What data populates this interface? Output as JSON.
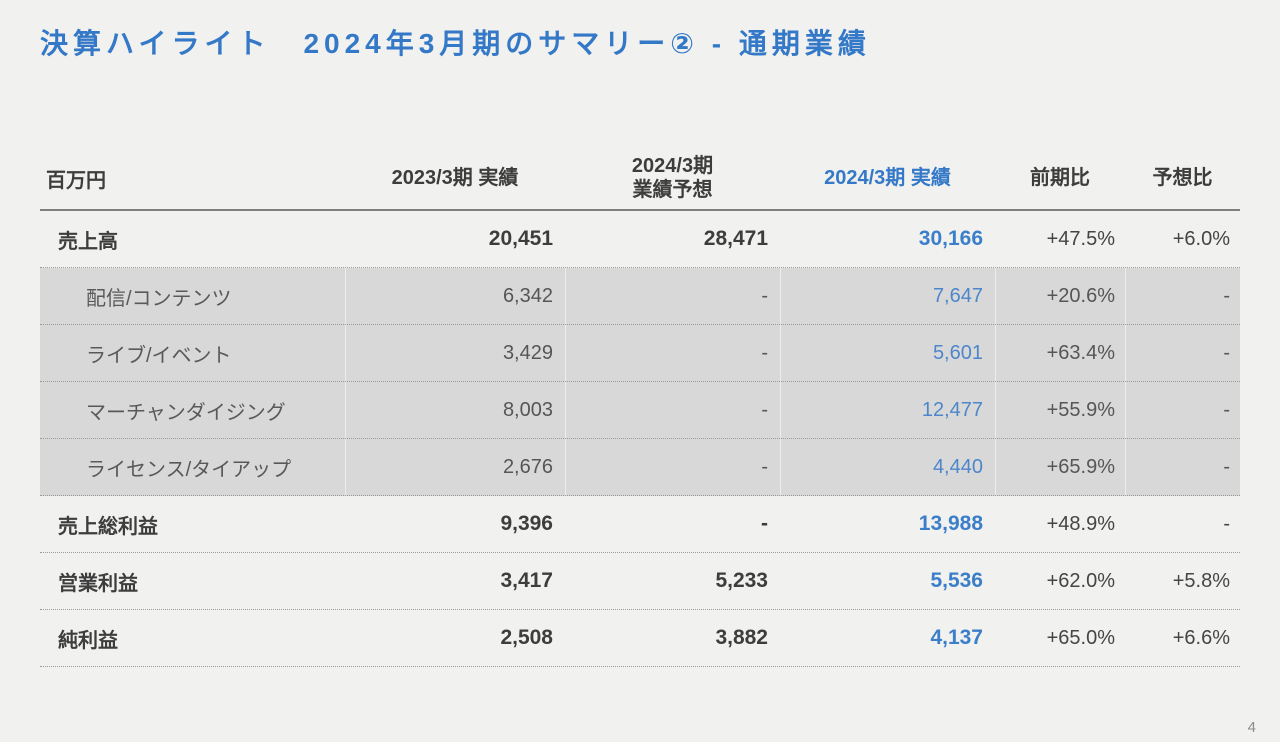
{
  "page": {
    "number": "4",
    "background": "#f1f1ef"
  },
  "title": {
    "text": "決算ハイライト　2024年3月期のサマリー② - 通期業績",
    "color": "#3478c8"
  },
  "colors": {
    "accent_blue": "#3478c8",
    "value_blue": "#3b7ec9",
    "highlight_row_gray": "#d8d8d8",
    "text_dark": "#3d3d3d",
    "text_sub": "#595959"
  },
  "table": {
    "unit_label": "百万円",
    "columns": [
      {
        "label": "2023/3期 実績"
      },
      {
        "label": "2024/3期\n業績予想"
      },
      {
        "label": "2024/3期 実績",
        "highlight": true
      },
      {
        "label": "前期比"
      },
      {
        "label": "予想比"
      }
    ],
    "rows": [
      {
        "type": "total",
        "label": "売上高",
        "fy2023_actual": "20,451",
        "fy2024_forecast": "28,471",
        "fy2024_actual": "30,166",
        "yoy": "+47.5%",
        "vs_forecast": "+6.0%"
      },
      {
        "type": "breakdown",
        "label": "配信/コンテンツ",
        "fy2023_actual": "6,342",
        "fy2024_forecast": "-",
        "fy2024_actual": "7,647",
        "yoy": "+20.6%",
        "vs_forecast": "-"
      },
      {
        "type": "breakdown",
        "label": "ライブ/イベント",
        "fy2023_actual": "3,429",
        "fy2024_forecast": "-",
        "fy2024_actual": "5,601",
        "yoy": "+63.4%",
        "vs_forecast": "-"
      },
      {
        "type": "breakdown",
        "label": "マーチャンダイジング",
        "fy2023_actual": "8,003",
        "fy2024_forecast": "-",
        "fy2024_actual": "12,477",
        "yoy": "+55.9%",
        "vs_forecast": "-"
      },
      {
        "type": "breakdown",
        "label": "ライセンス/タイアップ",
        "fy2023_actual": "2,676",
        "fy2024_forecast": "-",
        "fy2024_actual": "4,440",
        "yoy": "+65.9%",
        "vs_forecast": "-"
      },
      {
        "type": "total",
        "label": "売上総利益",
        "fy2023_actual": "9,396",
        "fy2024_forecast": "-",
        "fy2024_actual": "13,988",
        "yoy": "+48.9%",
        "vs_forecast": "-"
      },
      {
        "type": "total",
        "label": "営業利益",
        "fy2023_actual": "3,417",
        "fy2024_forecast": "5,233",
        "fy2024_actual": "5,536",
        "yoy": "+62.0%",
        "vs_forecast": "+5.8%"
      },
      {
        "type": "total",
        "label": "純利益",
        "fy2023_actual": "2,508",
        "fy2024_forecast": "3,882",
        "fy2024_actual": "4,137",
        "yoy": "+65.0%",
        "vs_forecast": "+6.6%"
      }
    ]
  }
}
